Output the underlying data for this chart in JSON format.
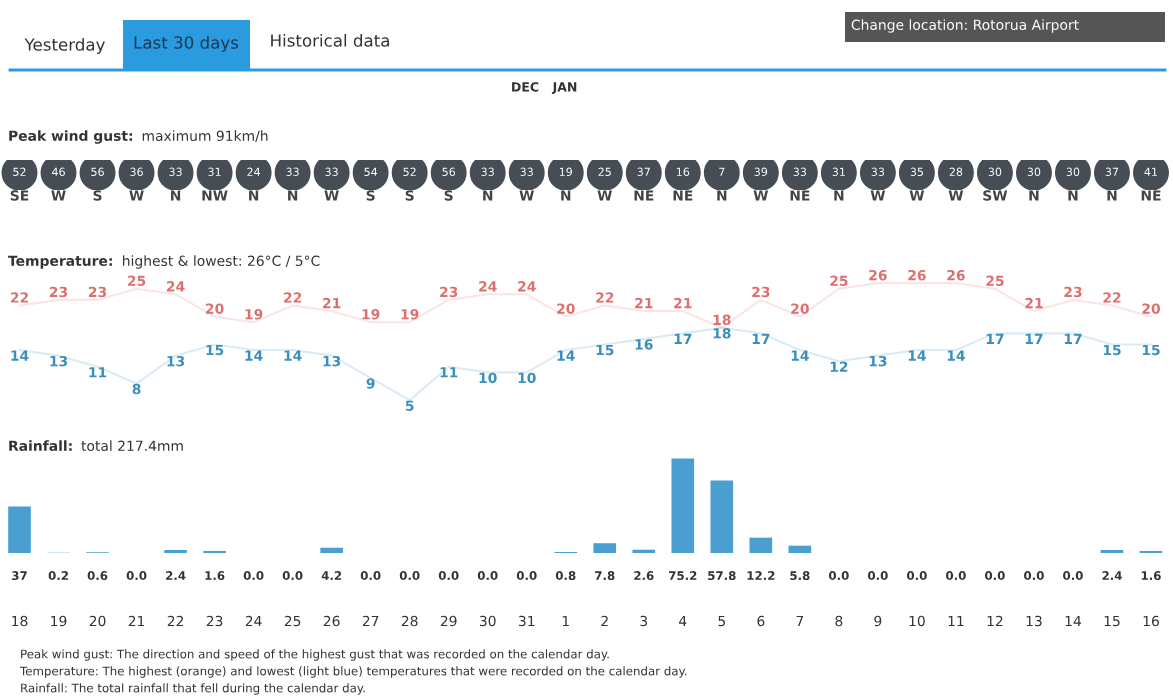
{
  "chart_data": [
    {
      "type": "other",
      "annotations": [
        "Yesterday",
        "Last 30 days",
        "Historical data",
        "Change location: Rotorua Airport",
        "DEC",
        "JAN"
      ]
    },
    {
      "type": "other",
      "title": "Peak wind gust:",
      "subtitle": "maximum 91km/h",
      "categories": [
        "SE",
        "W",
        "S",
        "W",
        "N",
        "NW",
        "N",
        "N",
        "W",
        "S",
        "S",
        "S",
        "N",
        "W",
        "N",
        "W",
        "NE",
        "NE",
        "N",
        "W",
        "NE",
        "N",
        "W",
        "W",
        "W",
        "SW",
        "N",
        "N",
        "N",
        "NE"
      ],
      "values": [
        52,
        46,
        56,
        36,
        33,
        31,
        24,
        33,
        33,
        54,
        52,
        56,
        33,
        33,
        19,
        25,
        37,
        16,
        7,
        39,
        33,
        31,
        33,
        35,
        28,
        30,
        30,
        30,
        37,
        41
      ],
      "color": "#474d54",
      "data_labels": true
    },
    {
      "type": "line",
      "title": "Temperature:",
      "subtitle": "highest & lowest: 26°C / 5°C",
      "categories": [
        null,
        null,
        null,
        null,
        null,
        null,
        null,
        null,
        null,
        null,
        null,
        null,
        null,
        null,
        null,
        null,
        null,
        null,
        null,
        null,
        null,
        null,
        null,
        null,
        null,
        null,
        null,
        null,
        null,
        null
      ],
      "series": [
        {
          "color": "#de6f6f",
          "values": [
            22,
            23,
            23,
            25,
            24,
            20,
            19,
            22,
            21,
            19,
            19,
            23,
            24,
            24,
            20,
            22,
            21,
            21,
            18,
            23,
            20,
            25,
            26,
            26,
            26,
            25,
            21,
            23,
            22,
            20
          ]
        },
        {
          "color": "#3b8fbd",
          "values": [
            14,
            13,
            11,
            8,
            13,
            15,
            14,
            14,
            13,
            9,
            5,
            11,
            10,
            10,
            14,
            15,
            16,
            17,
            18,
            17,
            14,
            12,
            13,
            14,
            14,
            17,
            17,
            17,
            15,
            15
          ]
        }
      ],
      "data_labels": true,
      "marker": "none",
      "tick_labels": false
    },
    {
      "type": "bar",
      "title": "Rainfall:",
      "subtitle": "total 217.4mm",
      "categories": [
        "18",
        "19",
        "20",
        "21",
        "22",
        "23",
        "24",
        "25",
        "26",
        "27",
        "28",
        "29",
        "30",
        "31",
        "1",
        "2",
        "3",
        "4",
        "5",
        "6",
        "7",
        "8",
        "9",
        "10",
        "11",
        "12",
        "13",
        "14",
        "15",
        "16"
      ],
      "values": [
        37,
        0.2,
        0.6,
        0,
        2.4,
        1.6,
        0,
        0,
        4.2,
        0,
        0,
        0,
        0,
        0,
        0.8,
        7.8,
        2.6,
        75.2,
        57.8,
        12.2,
        5.8,
        0,
        0,
        0,
        0,
        0,
        0,
        0,
        2.4,
        1.6
      ],
      "value_labels": [
        "37",
        "0.2",
        "0.6",
        "0.0",
        "2.4",
        "1.6",
        "0.0",
        "0.0",
        "4.2",
        "0.0",
        "0.0",
        "0.0",
        "0.0",
        "0.0",
        "0.8",
        "7.8",
        "2.6",
        "75.2",
        "57.8",
        "12.2",
        "5.8",
        "0.0",
        "0.0",
        "0.0",
        "0.0",
        "0.0",
        "0.0",
        "0.0",
        "2.4",
        "1.6"
      ],
      "color": "#4a9fd0",
      "ylim": [
        0,
        78
      ],
      "tick_labels": "x",
      "annotations": [
        "Peak wind gust: The direction and speed of the highest gust that was recorded on the calendar day.",
        "Temperature: The highest (orange) and lowest (light blue) temperatures that were recorded on the calendar day.",
        "Rainfall: The total rainfall that fell during the calendar day."
      ]
    }
  ]
}
